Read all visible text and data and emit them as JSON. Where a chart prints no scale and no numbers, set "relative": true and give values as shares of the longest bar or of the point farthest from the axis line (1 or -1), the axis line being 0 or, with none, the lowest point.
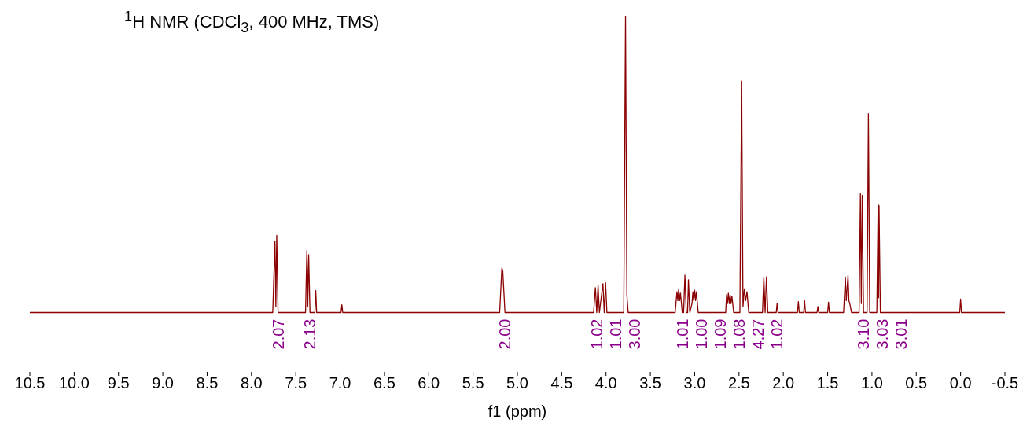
{
  "chart_data": {
    "type": "line",
    "title": "$^{1}$H NMR (CDCl$_{3}$, 400 MHz, TMS)",
    "xlabel": "f1 (ppm)",
    "relative": true,
    "xlim": [
      10.5,
      -0.5
    ],
    "xticks": [
      10.5,
      {
        "value": 10,
        "label": "10.0"
      },
      9.5,
      {
        "value": 9,
        "label": "9.0"
      },
      8.5,
      {
        "value": 8,
        "label": "8.0"
      },
      7.5,
      {
        "value": 7,
        "label": "7.0"
      },
      6.5,
      {
        "value": 6,
        "label": "6.0"
      },
      5.5,
      {
        "value": 5,
        "label": "5.0"
      },
      4.5,
      {
        "value": 4,
        "label": "4.0"
      },
      3.5,
      {
        "value": 3,
        "label": "3.0"
      },
      2.5,
      {
        "value": 2,
        "label": "2.0"
      },
      1.5,
      {
        "value": 1,
        "label": "1.0"
      },
      0.5,
      {
        "value": 0,
        "label": "0.0"
      },
      -0.5
    ],
    "tick_labels": "x",
    "grid": false,
    "series": [
      {
        "color": "#8b0000",
        "x": [
          10.5,
          7.76,
          7.735,
          7.725,
          7.715,
          7.7,
          7.39,
          7.375,
          7.365,
          7.355,
          7.34,
          7.285,
          7.275,
          7.265,
          6.99,
          6.98,
          6.97,
          5.2,
          5.175,
          5.165,
          5.14,
          4.14,
          4.12,
          4.105,
          4.09,
          4.075,
          4.035,
          4.02,
          4.005,
          3.99,
          3.8,
          3.78,
          3.765,
          3.75,
          3.22,
          3.2,
          3.19,
          3.18,
          3.17,
          3.16,
          3.14,
          3.125,
          3.11,
          3.095,
          3.08,
          3.07,
          3.055,
          3.03,
          3.02,
          3.01,
          3.0,
          2.99,
          2.98,
          2.96,
          2.65,
          2.64,
          2.63,
          2.62,
          2.61,
          2.6,
          2.59,
          2.58,
          2.56,
          2.49,
          2.47,
          2.455,
          2.44,
          2.425,
          2.41,
          2.39,
          2.235,
          2.22,
          2.205,
          2.19,
          2.175,
          2.08,
          2.07,
          2.06,
          1.84,
          1.83,
          1.82,
          1.77,
          1.76,
          1.75,
          1.62,
          1.61,
          1.6,
          1.5,
          1.49,
          1.48,
          1.32,
          1.3,
          1.29,
          1.27,
          1.26,
          1.25,
          1.23,
          1.145,
          1.13,
          1.12,
          1.11,
          1.095,
          1.055,
          1.04,
          1.025,
          0.945,
          0.93,
          0.925,
          0.92,
          0.905,
          0.01,
          0.0,
          -0.01,
          -0.5
        ],
        "values": [
          0,
          0,
          0.24,
          0.02,
          0.26,
          0,
          0,
          0.21,
          0.02,
          0.195,
          0,
          0,
          0.074,
          0,
          0,
          0.026,
          0,
          0,
          0.15,
          0.14,
          0,
          0,
          0.084,
          0,
          0.092,
          0,
          0.097,
          0,
          0.1,
          0,
          0,
          1.0,
          0.06,
          0,
          0,
          0.07,
          0.04,
          0.08,
          0.04,
          0.065,
          0,
          0,
          0.126,
          0,
          0,
          0.11,
          0,
          0.03,
          0.07,
          0.04,
          0.075,
          0.04,
          0.07,
          0,
          0,
          0.06,
          0.03,
          0.065,
          0.03,
          0.06,
          0.03,
          0.055,
          0,
          0,
          0.78,
          0.02,
          0.08,
          0.04,
          0.07,
          0,
          0,
          0.12,
          0,
          0.12,
          0,
          0,
          0.03,
          0,
          0,
          0.037,
          0,
          0,
          0.04,
          0,
          0,
          0.02,
          0,
          0,
          0.035,
          0,
          0,
          0.12,
          0.04,
          0.125,
          0.04,
          0.03,
          0,
          0,
          0.4,
          0.03,
          0.395,
          0,
          0,
          0.67,
          0,
          0,
          0.366,
          0.05,
          0.36,
          0,
          0,
          0.045,
          0,
          0
        ]
      }
    ],
    "annotations": [
      {
        "text": "2.07",
        "x": 7.7,
        "y": 0
      },
      {
        "text": "2.13",
        "x": 7.34,
        "y": 0
      },
      {
        "text": "2.00",
        "x": 5.14,
        "y": 0
      },
      {
        "text": "1.02",
        "x": 4.105,
        "y": 0
      },
      {
        "text": "1.01",
        "x": 4.02,
        "y": 0
      },
      {
        "text": "3.00",
        "x": 3.75,
        "y": 0
      },
      {
        "text": "1.01",
        "x": 3.14,
        "y": 0
      },
      {
        "text": "1.00",
        "x": 3.095,
        "y": 0
      },
      {
        "text": "1.09",
        "x": 2.96,
        "y": 0
      },
      {
        "text": "1.08",
        "x": 2.56,
        "y": 0
      },
      {
        "text": "4.27",
        "x": 2.39,
        "y": 0
      },
      {
        "text": "1.02",
        "x": 2.205,
        "y": 0
      },
      {
        "text": "3.10",
        "x": 1.095,
        "y": 0
      },
      {
        "text": "3.03",
        "x": 1.055,
        "y": 0
      },
      {
        "text": "3.01",
        "x": 0.905,
        "y": 0
      }
    ]
  }
}
